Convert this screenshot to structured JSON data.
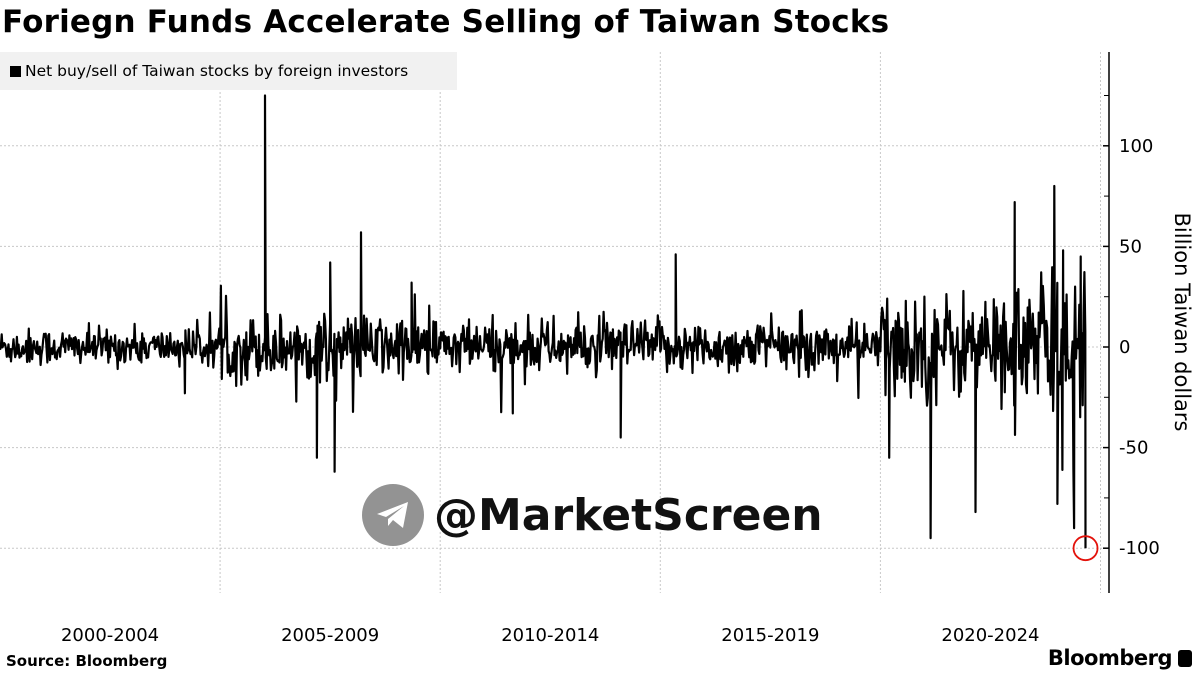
{
  "chart_data": {
    "type": "line",
    "title": "Foriegn Funds Accelerate Selling of Taiwan Stocks",
    "legend": [
      "Net buy/sell of Taiwan stocks by foreign investors"
    ],
    "legend_placement": "top-left",
    "ylabel": "Billion Taiwan dollars",
    "y_axis_side": "right",
    "ylim": [
      -122,
      145
    ],
    "xlim": [
      2000,
      2025.2
    ],
    "y_ticks": [
      100,
      50,
      0,
      -50,
      -100
    ],
    "y_tick_labels": [
      "100",
      "50",
      "0",
      "-50",
      "-100"
    ],
    "y_minor_ticks": [
      125,
      75,
      25,
      -25,
      -75
    ],
    "x_gridlines": [
      2005,
      2010,
      2015,
      2020,
      2025
    ],
    "x_tick_labels": [
      {
        "label": "2000-2004",
        "center": 2002.5
      },
      {
        "label": "2005-2009",
        "center": 2007.5
      },
      {
        "label": "2010-2014",
        "center": 2012.5
      },
      {
        "label": "2015-2019",
        "center": 2017.5
      },
      {
        "label": "2020-2024",
        "center": 2022.5
      }
    ],
    "grid": true,
    "series_color": "#000000",
    "frequency": "weekly (approx.)",
    "volatility_by_period": [
      {
        "from": 2000,
        "to": 2005,
        "sd": 4.5
      },
      {
        "from": 2005,
        "to": 2010,
        "sd": 8
      },
      {
        "from": 2010,
        "to": 2015,
        "sd": 6.5
      },
      {
        "from": 2015,
        "to": 2020,
        "sd": 6
      },
      {
        "from": 2020,
        "to": 2023,
        "sd": 13
      },
      {
        "from": 2023,
        "to": 2024.7,
        "sd": 18
      }
    ],
    "notable_points": [
      [
        2004.2,
        -23
      ],
      [
        2006.02,
        125
      ],
      [
        2007.2,
        -55
      ],
      [
        2007.5,
        42
      ],
      [
        2007.6,
        -62
      ],
      [
        2008.2,
        57
      ],
      [
        2009.35,
        32
      ],
      [
        2011.65,
        -33
      ],
      [
        2014.1,
        -45
      ],
      [
        2015.35,
        46
      ],
      [
        2020.2,
        -55
      ],
      [
        2021.14,
        -95
      ],
      [
        2022.16,
        -82
      ],
      [
        2023.05,
        72
      ],
      [
        2023.95,
        80
      ],
      [
        2024.02,
        -78
      ],
      [
        2024.15,
        48
      ],
      [
        2024.4,
        -90
      ],
      [
        2024.55,
        45
      ],
      [
        2024.66,
        -100
      ]
    ],
    "highlight": {
      "x": 2024.66,
      "y": -100,
      "color": "#e3120b"
    }
  },
  "source": "Source:  Bloomberg",
  "brand": "Bloomberg",
  "watermark": "@MarketScreen"
}
